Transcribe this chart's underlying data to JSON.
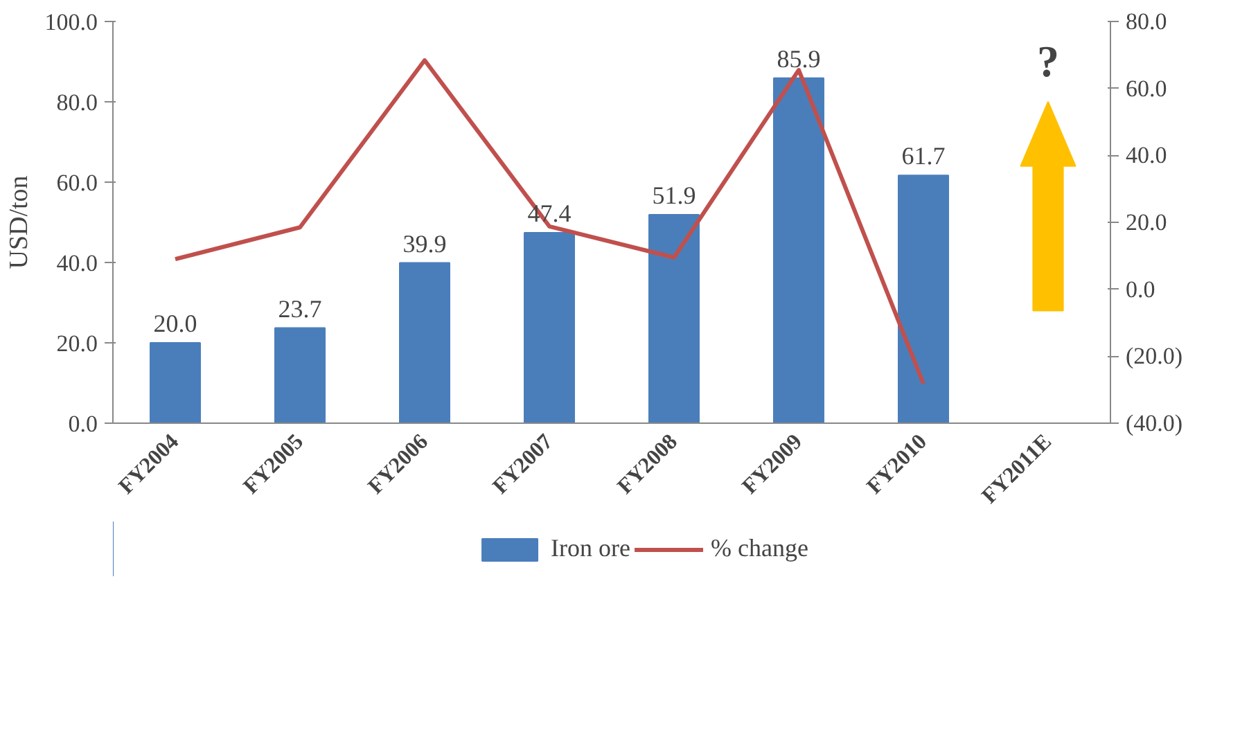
{
  "chart_data": {
    "type": "bar",
    "ylabel": "USD/ton",
    "categories": [
      "FY2004",
      "FY2005",
      "FY2006",
      "FY2007",
      "FY2008",
      "FY2009",
      "FY2010",
      "FY2011E"
    ],
    "series": [
      {
        "name": "Iron ore",
        "color": "#4a7ebb",
        "values": [
          20.0,
          23.7,
          39.9,
          47.4,
          51.9,
          85.9,
          61.7,
          null
        ],
        "value_labels": [
          "20.0",
          "23.7",
          "39.9",
          "47.4",
          "51.9",
          "85.9",
          "61.7",
          null
        ]
      },
      {
        "name": "% change",
        "type": "line",
        "axis": "y2",
        "color": "#c0504d",
        "values": [
          9,
          18.5,
          68.4,
          18.8,
          9.5,
          65.5,
          -28.2,
          null
        ]
      }
    ],
    "ylim": [
      0,
      100
    ],
    "yticks": [
      {
        "value": 0,
        "label": "0.0"
      },
      {
        "value": 20,
        "label": "20.0"
      },
      {
        "value": 40,
        "label": "40.0"
      },
      {
        "value": 60,
        "label": "60.0"
      },
      {
        "value": 80,
        "label": "80.0"
      },
      {
        "value": 100,
        "label": "100.0"
      }
    ],
    "y2lim": [
      -40,
      80
    ],
    "y2ticks": [
      {
        "value": -40,
        "label": "(40.0)"
      },
      {
        "value": -20,
        "label": "(20.0)"
      },
      {
        "value": 0,
        "label": "0.0"
      },
      {
        "value": 20,
        "label": "20.0"
      },
      {
        "value": 40,
        "label": "40.0"
      },
      {
        "value": 60,
        "label": "60.0"
      },
      {
        "value": 80,
        "label": "80.0"
      }
    ],
    "annotations": [
      "?"
    ],
    "grid": false,
    "legend": "bottom",
    "marker": "none",
    "line_style": "solid"
  }
}
